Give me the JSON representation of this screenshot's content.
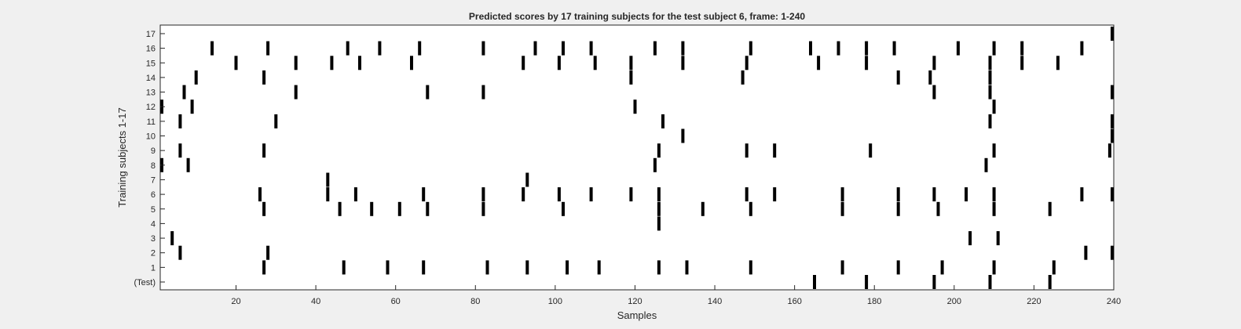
{
  "chart_data": {
    "type": "scatter",
    "title": "Predicted scores by 17 training subjects for the test subject 6, frame: 1-240",
    "xlabel": "Samples",
    "ylabel": "Training subjects 1-17",
    "xlim": [
      1,
      240
    ],
    "x_ticks": [
      20,
      40,
      60,
      80,
      100,
      120,
      140,
      160,
      180,
      200,
      220,
      240
    ],
    "y_tick_labels": [
      "(Test)",
      "1",
      "2",
      "3",
      "4",
      "5",
      "6",
      "7",
      "8",
      "9",
      "10",
      "11",
      "12",
      "13",
      "14",
      "15",
      "16",
      "17"
    ],
    "grid": false,
    "colors": {
      "background": "#f0f0f0",
      "axes": "#ffffff",
      "mark": "#000000",
      "text": "#262626"
    },
    "series": [
      {
        "row": "(Test)",
        "x": [
          165,
          178,
          195,
          209,
          224
        ]
      },
      {
        "row": "1",
        "x": [
          27,
          47,
          58,
          67,
          83,
          93,
          103,
          111,
          126,
          133,
          149,
          172,
          186,
          197,
          210,
          225
        ]
      },
      {
        "row": "2",
        "x": [
          6,
          28,
          233,
          240
        ]
      },
      {
        "row": "3",
        "x": [
          4,
          204,
          211
        ]
      },
      {
        "row": "4",
        "x": [
          126
        ]
      },
      {
        "row": "5",
        "x": [
          27,
          46,
          54,
          61,
          68,
          82,
          102,
          126,
          137,
          149,
          172,
          186,
          196,
          210,
          224
        ]
      },
      {
        "row": "6",
        "x": [
          26,
          43,
          50,
          67,
          82,
          92,
          101,
          109,
          119,
          126,
          148,
          155,
          172,
          186,
          195,
          203,
          210,
          232,
          240
        ]
      },
      {
        "row": "7",
        "x": [
          43,
          93
        ]
      },
      {
        "row": "8",
        "x": [
          1,
          8,
          125,
          208
        ]
      },
      {
        "row": "9",
        "x": [
          6,
          27,
          126,
          148,
          155,
          179,
          210,
          239
        ]
      },
      {
        "row": "10",
        "x": [
          132,
          240
        ]
      },
      {
        "row": "11",
        "x": [
          6,
          30,
          127,
          209,
          240
        ]
      },
      {
        "row": "12",
        "x": [
          1,
          9,
          120,
          210
        ]
      },
      {
        "row": "13",
        "x": [
          7,
          35,
          68,
          82,
          195,
          209,
          240
        ]
      },
      {
        "row": "14",
        "x": [
          10,
          27,
          119,
          147,
          186,
          194,
          209
        ]
      },
      {
        "row": "15",
        "x": [
          20,
          35,
          44,
          51,
          64,
          92,
          101,
          110,
          119,
          132,
          148,
          166,
          178,
          195,
          209,
          217,
          226
        ]
      },
      {
        "row": "16",
        "x": [
          14,
          28,
          48,
          56,
          66,
          82,
          95,
          102,
          109,
          125,
          132,
          149,
          164,
          171,
          178,
          185,
          201,
          210,
          217,
          232
        ]
      },
      {
        "row": "17",
        "x": [
          240
        ]
      }
    ]
  }
}
